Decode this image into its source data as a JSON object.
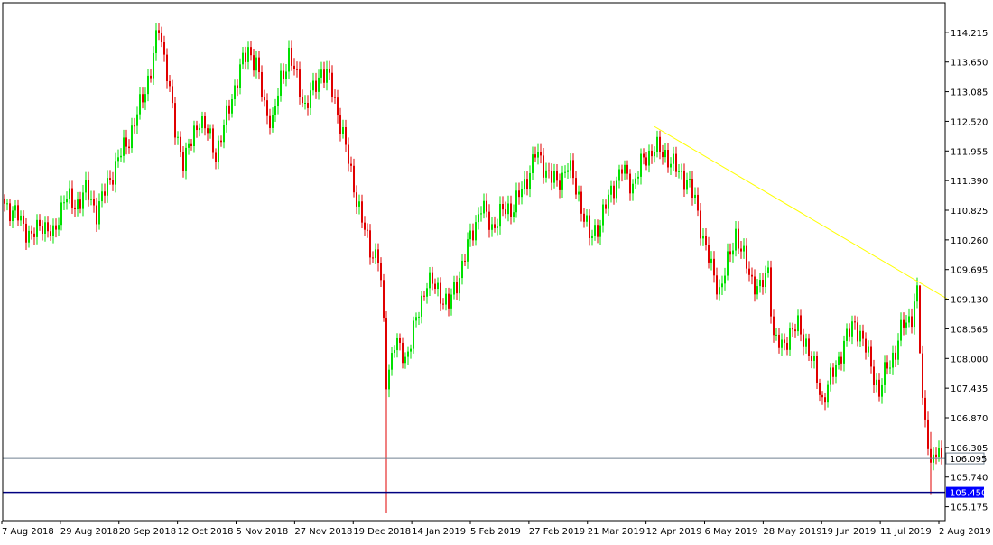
{
  "colors": {
    "background": "#ffffff",
    "bull": "#00e000",
    "bear": "#e00000",
    "trendline": "#ffff00",
    "bid_line": "#708090",
    "support_line": "#000080",
    "support_badge": "#0000ff",
    "axis": "#000000"
  },
  "chart_data": {
    "type": "candlestick",
    "title": "",
    "xlabel": "",
    "ylabel": "",
    "grid": false,
    "ylim": [
      104.91,
      114.78
    ],
    "y_ticks": [
      "114.215",
      "113.650",
      "113.085",
      "112.520",
      "111.955",
      "111.390",
      "110.825",
      "110.260",
      "109.695",
      "109.130",
      "108.565",
      "108.000",
      "107.435",
      "106.870",
      "106.305",
      "105.740",
      "105.175"
    ],
    "x_ticks": [
      "7 Aug 2018",
      "29 Aug 2018",
      "20 Sep 2018",
      "12 Oct 2018",
      "5 Nov 2018",
      "27 Nov 2018",
      "19 Dec 2018",
      "14 Jan 2019",
      "5 Feb 2019",
      "27 Feb 2019",
      "21 Mar 2019",
      "12 Apr 2019",
      "6 May 2019",
      "28 May 2019",
      "19 Jun 2019",
      "11 Jul 2019",
      "2 Aug 2019"
    ],
    "anchors": [
      [
        0,
        110.95
      ],
      [
        5,
        110.7
      ],
      [
        10,
        110.3
      ],
      [
        14,
        110.6
      ],
      [
        18,
        110.3
      ],
      [
        22,
        111.1
      ],
      [
        26,
        110.9
      ],
      [
        30,
        111.2
      ],
      [
        34,
        110.8
      ],
      [
        38,
        111.3
      ],
      [
        42,
        111.8
      ],
      [
        46,
        112.2
      ],
      [
        50,
        112.8
      ],
      [
        54,
        113.5
      ],
      [
        57,
        114.3
      ],
      [
        60,
        113.5
      ],
      [
        63,
        112.3
      ],
      [
        66,
        111.8
      ],
      [
        69,
        112.1
      ],
      [
        72,
        112.6
      ],
      [
        75,
        112.3
      ],
      [
        78,
        111.9
      ],
      [
        81,
        112.4
      ],
      [
        84,
        113.0
      ],
      [
        87,
        113.5
      ],
      [
        90,
        113.9
      ],
      [
        93,
        113.6
      ],
      [
        96,
        112.8
      ],
      [
        99,
        112.5
      ],
      [
        102,
        113.3
      ],
      [
        105,
        113.8
      ],
      [
        108,
        113.3
      ],
      [
        111,
        112.8
      ],
      [
        114,
        113.1
      ],
      [
        117,
        113.5
      ],
      [
        120,
        113.3
      ],
      [
        123,
        112.7
      ],
      [
        126,
        112.0
      ],
      [
        129,
        111.3
      ],
      [
        132,
        110.6
      ],
      [
        135,
        110.1
      ],
      [
        138,
        109.9
      ],
      [
        139,
        109.4
      ],
      [
        140,
        108.6
      ],
      [
        141,
        107.6
      ],
      [
        144,
        108.3
      ],
      [
        148,
        108.0
      ],
      [
        152,
        108.7
      ],
      [
        156,
        109.5
      ],
      [
        160,
        109.3
      ],
      [
        164,
        109.0
      ],
      [
        168,
        109.6
      ],
      [
        172,
        110.3
      ],
      [
        176,
        110.9
      ],
      [
        180,
        110.5
      ],
      [
        184,
        110.8
      ],
      [
        188,
        110.9
      ],
      [
        192,
        111.3
      ],
      [
        196,
        111.9
      ],
      [
        200,
        111.6
      ],
      [
        204,
        111.3
      ],
      [
        208,
        111.7
      ],
      [
        212,
        111.1
      ],
      [
        216,
        110.3
      ],
      [
        220,
        110.6
      ],
      [
        224,
        111.2
      ],
      [
        228,
        111.6
      ],
      [
        232,
        111.3
      ],
      [
        236,
        111.8
      ],
      [
        240,
        112.0
      ],
      [
        244,
        111.9
      ],
      [
        248,
        111.6
      ],
      [
        252,
        111.4
      ],
      [
        255,
        111.0
      ],
      [
        258,
        110.3
      ],
      [
        261,
        109.7
      ],
      [
        264,
        109.3
      ],
      [
        267,
        109.8
      ],
      [
        270,
        110.4
      ],
      [
        273,
        109.9
      ],
      [
        276,
        109.5
      ],
      [
        279,
        109.3
      ],
      [
        282,
        109.7
      ],
      [
        284,
        108.4
      ],
      [
        287,
        108.2
      ],
      [
        290,
        108.5
      ],
      [
        293,
        108.6
      ],
      [
        296,
        108.3
      ],
      [
        299,
        107.8
      ],
      [
        302,
        107.2
      ],
      [
        305,
        107.6
      ],
      [
        308,
        108.0
      ],
      [
        311,
        108.4
      ],
      [
        314,
        108.7
      ],
      [
        317,
        108.3
      ],
      [
        320,
        107.9
      ],
      [
        323,
        107.3
      ],
      [
        326,
        107.9
      ],
      [
        329,
        108.1
      ],
      [
        332,
        108.7
      ],
      [
        335,
        108.8
      ],
      [
        337,
        109.2
      ],
      [
        339,
        107.2
      ],
      [
        341,
        106.5
      ],
      [
        342,
        105.9
      ],
      [
        344,
        106.2
      ],
      [
        346,
        106.1
      ]
    ],
    "special_wicks": [
      {
        "index": 141,
        "high": 108.9,
        "low": 105.05
      },
      {
        "index": 338,
        "high": 109.3,
        "low": 108.6
      },
      {
        "index": 342,
        "high": 106.6,
        "low": 105.4
      }
    ],
    "overlays": {
      "trendline": {
        "start": [
          240,
          112.42
        ],
        "end": [
          348,
          109.14
        ]
      },
      "bid_line": {
        "value": 106.095,
        "label": "106.095"
      },
      "support_line": {
        "value": 105.45,
        "label": "105.450"
      }
    }
  }
}
